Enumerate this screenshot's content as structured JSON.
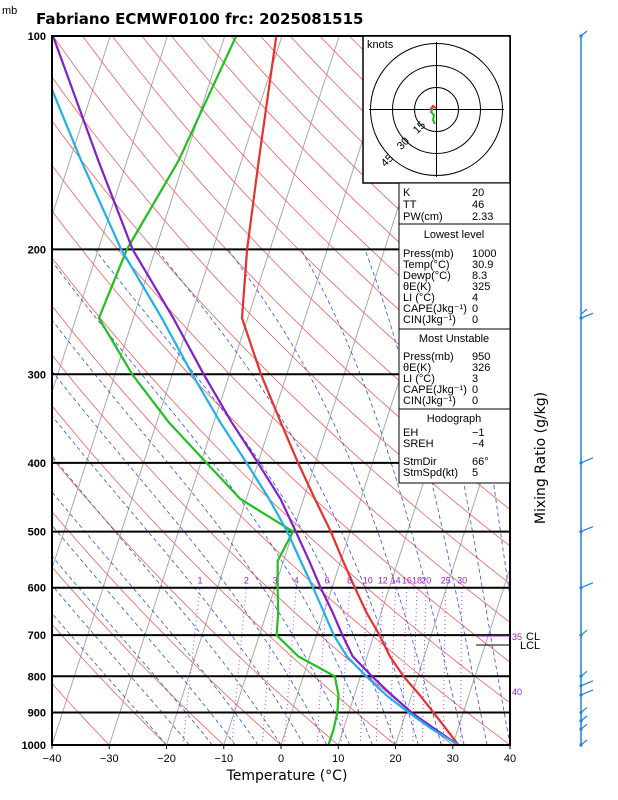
{
  "title": "Fabriano ECMWF0100 frc: 2025081515",
  "y_unit": "mb",
  "x_axis_label": "Temperature (°C)",
  "right_axis_label": "Mixing Ratio (g/kg)",
  "hodograph": {
    "unit_label": "knots",
    "ring_labels": [
      "15",
      "30",
      "45"
    ]
  },
  "index_table": {
    "rows": [
      {
        "label": "K",
        "value": "20"
      },
      {
        "label": "TT",
        "value": "46"
      },
      {
        "label": "PW(cm)",
        "value": "2.33"
      }
    ]
  },
  "lowest_level": {
    "header": "Lowest level",
    "rows": [
      {
        "label": "Press(mb)",
        "value": "1000"
      },
      {
        "label": "Temp(°C)",
        "value": "30.9"
      },
      {
        "label": "Dewp(°C)",
        "value": "8.3"
      },
      {
        "label": "θE(K)",
        "value": "325"
      },
      {
        "label": "LI (°C)",
        "value": "4"
      },
      {
        "label": "CAPE(Jkg⁻¹)",
        "value": "0"
      },
      {
        "label": "CIN(Jkg⁻¹)",
        "value": "0"
      }
    ]
  },
  "most_unstable": {
    "header": "Most Unstable",
    "rows": [
      {
        "label": "Press(mb)",
        "value": "950"
      },
      {
        "label": "θE(K)",
        "value": "326"
      },
      {
        "label": "LI (°C)",
        "value": "3"
      },
      {
        "label": "CAPE(Jkg⁻¹)",
        "value": "0"
      },
      {
        "label": "CIN(Jkg⁻¹)",
        "value": "0"
      }
    ]
  },
  "hodograph_table": {
    "header": "Hodograph",
    "rows": [
      {
        "label": "EH",
        "value": "−1"
      },
      {
        "label": "SREH",
        "value": "−4"
      },
      {
        "label": "StmDir",
        "value": "66°"
      },
      {
        "label": "StmSpd(kt)",
        "value": "5"
      }
    ]
  },
  "level_labels": {
    "lcl": "LCL",
    "l35": "35",
    "l40": "40",
    "cl": "CL"
  },
  "chart_data": {
    "type": "line",
    "x_tick_labels": [
      "−40",
      "−30",
      "−20",
      "−10",
      "0",
      "10",
      "20",
      "30",
      "40"
    ],
    "xlim": [
      -40,
      40
    ],
    "y_tick_labels": [
      "100",
      "200",
      "300",
      "400",
      "500",
      "600",
      "700",
      "800",
      "900",
      "1000"
    ],
    "ylim": [
      1000,
      100
    ],
    "y_scale": "log",
    "mixing_ratio_labels": [
      "1",
      "2",
      "3",
      "4",
      "6",
      "8",
      "10",
      "12",
      "14",
      "16",
      "18",
      "20",
      "25",
      "30"
    ],
    "mixing_ratio_values": [
      1,
      2,
      3,
      4,
      6,
      8,
      10,
      12,
      14,
      16,
      18,
      20,
      25,
      30
    ],
    "series": [
      {
        "color": "#e83030",
        "points": [
          [
            1000,
            31
          ],
          [
            950,
            28
          ],
          [
            900,
            24.8
          ],
          [
            850,
            21.4
          ],
          [
            800,
            17.5
          ],
          [
            750,
            14
          ],
          [
            700,
            11
          ],
          [
            650,
            7.4
          ],
          [
            600,
            4
          ],
          [
            550,
            0.4
          ],
          [
            500,
            -3.4
          ],
          [
            450,
            -8
          ],
          [
            400,
            -13
          ],
          [
            350,
            -18.4
          ],
          [
            300,
            -24.5
          ],
          [
            250,
            -31
          ],
          [
            200,
            -34
          ],
          [
            150,
            -37
          ],
          [
            100,
            -41
          ]
        ]
      },
      {
        "color": "#20c020",
        "points": [
          [
            1000,
            8.3
          ],
          [
            950,
            8.3
          ],
          [
            900,
            8
          ],
          [
            850,
            7.2
          ],
          [
            800,
            5.5
          ],
          [
            750,
            -2
          ],
          [
            700,
            -7
          ],
          [
            650,
            -8
          ],
          [
            600,
            -9.5
          ],
          [
            550,
            -11
          ],
          [
            500,
            -10
          ],
          [
            450,
            -21
          ],
          [
            400,
            -29
          ],
          [
            350,
            -38
          ],
          [
            300,
            -47
          ],
          [
            250,
            -56
          ],
          [
            200,
            -55
          ],
          [
            150,
            -51
          ],
          [
            100,
            -48
          ]
        ]
      },
      {
        "color": "#8020c8",
        "points": [
          [
            1000,
            31
          ],
          [
            950,
            26
          ],
          [
            900,
            21
          ],
          [
            850,
            16.5
          ],
          [
            800,
            12
          ],
          [
            750,
            7.5
          ],
          [
            700,
            4.5
          ],
          [
            650,
            1.5
          ],
          [
            600,
            -2
          ],
          [
            550,
            -5.5
          ],
          [
            500,
            -9.5
          ],
          [
            450,
            -14
          ],
          [
            400,
            -20
          ],
          [
            350,
            -27
          ],
          [
            300,
            -34.5
          ],
          [
            250,
            -43
          ],
          [
            200,
            -54
          ],
          [
            150,
            -65
          ],
          [
            100,
            -80
          ]
        ]
      },
      {
        "color": "#20b0e8",
        "points": [
          [
            1000,
            31
          ],
          [
            950,
            25.5
          ],
          [
            900,
            20.5
          ],
          [
            850,
            15.5
          ],
          [
            800,
            11
          ],
          [
            750,
            6.5
          ],
          [
            700,
            3
          ],
          [
            650,
            0
          ],
          [
            600,
            -3.3
          ],
          [
            550,
            -7
          ],
          [
            500,
            -11
          ],
          [
            450,
            -16
          ],
          [
            400,
            -22
          ],
          [
            350,
            -29
          ],
          [
            300,
            -36.5
          ],
          [
            250,
            -45
          ],
          [
            200,
            -56
          ],
          [
            150,
            -68
          ],
          [
            100,
            -84
          ]
        ]
      }
    ],
    "grid": true
  },
  "wind_profile": [
    {
      "p": 1000,
      "speed": 5
    },
    {
      "p": 950,
      "speed": 5
    },
    {
      "p": 925,
      "speed": 5
    },
    {
      "p": 900,
      "speed": 5
    },
    {
      "p": 850,
      "speed": 10
    },
    {
      "p": 825,
      "speed": 10
    },
    {
      "p": 800,
      "speed": 5
    },
    {
      "p": 700,
      "speed": 5
    },
    {
      "p": 600,
      "speed": 10
    },
    {
      "p": 500,
      "speed": 10
    },
    {
      "p": 400,
      "speed": 10
    },
    {
      "p": 250,
      "speed": 15
    },
    {
      "p": 100,
      "speed": 5
    }
  ]
}
